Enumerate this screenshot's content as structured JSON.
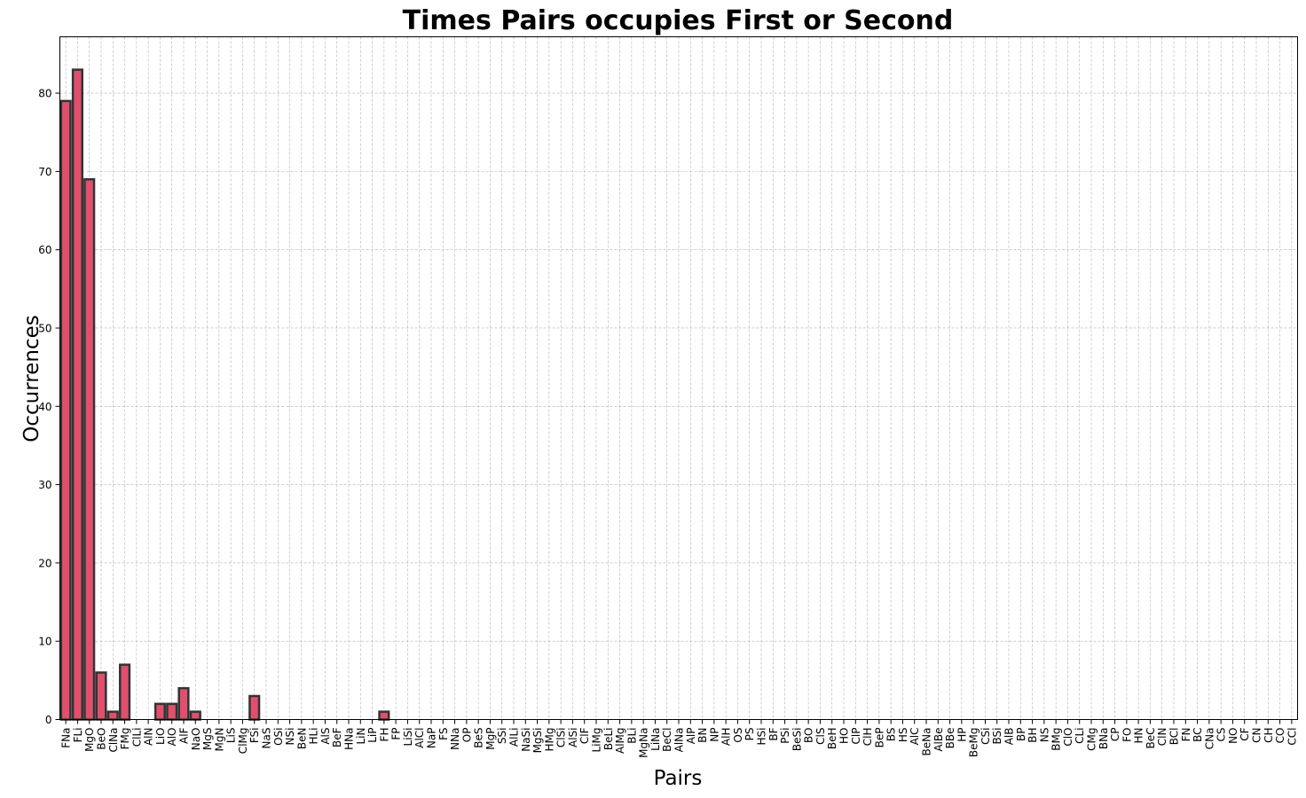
{
  "chart_data": {
    "type": "bar",
    "title": "Times Pairs occupies First or Second",
    "xlabel": "Pairs",
    "ylabel": "Occurrences",
    "ylim": [
      0,
      87.2
    ],
    "yticks": [
      0,
      10,
      20,
      30,
      40,
      50,
      60,
      70,
      80
    ],
    "grid": true,
    "colors": {
      "bar_fill": "#e0506c",
      "bar_edge": "#333333"
    },
    "categories": [
      "FNa",
      "FLi",
      "MgO",
      "BeO",
      "ClNa",
      "FMg",
      "ClLi",
      "AlN",
      "LiO",
      "AlO",
      "AlF",
      "NaO",
      "MgS",
      "MgN",
      "LiS",
      "ClMg",
      "FSi",
      "NaS",
      "OSi",
      "NSi",
      "BeN",
      "HLi",
      "AlS",
      "BeF",
      "HNa",
      "LiN",
      "LiP",
      "FH",
      "FP",
      "LiSi",
      "AlCl",
      "NaP",
      "FS",
      "NNa",
      "OP",
      "BeS",
      "MgP",
      "SSi",
      "AlLi",
      "NaSi",
      "MgSi",
      "HMg",
      "ClSi",
      "AlSi",
      "ClF",
      "LiMg",
      "BeLi",
      "AlMg",
      "BLi",
      "MgNa",
      "LiNa",
      "BeCl",
      "AlNa",
      "AlP",
      "BN",
      "NP",
      "AlH",
      "OS",
      "PS",
      "HSi",
      "BF",
      "PSi",
      "BeSi",
      "BO",
      "ClS",
      "BeH",
      "HO",
      "ClP",
      "ClH",
      "BeP",
      "BS",
      "HS",
      "AlC",
      "BeNa",
      "AlBe",
      "BBe",
      "HP",
      "BeMg",
      "CSi",
      "BSi",
      "AlB",
      "BP",
      "BH",
      "NS",
      "BMg",
      "ClO",
      "CLi",
      "CMg",
      "BNa",
      "CP",
      "FO",
      "HN",
      "BeC",
      "ClN",
      "BCl",
      "FN",
      "BC",
      "CNa",
      "CS",
      "NO",
      "CF",
      "CN",
      "CH",
      "CO",
      "CCl"
    ],
    "values": [
      79,
      83,
      69,
      6,
      1,
      7,
      0,
      0,
      2,
      2,
      4,
      1,
      0,
      0,
      0,
      0,
      3,
      0,
      0,
      0,
      0,
      0,
      0,
      0,
      0,
      0,
      0,
      1,
      0,
      0,
      0,
      0,
      0,
      0,
      0,
      0,
      0,
      0,
      0,
      0,
      0,
      0,
      0,
      0,
      0,
      0,
      0,
      0,
      0,
      0,
      0,
      0,
      0,
      0,
      0,
      0,
      0,
      0,
      0,
      0,
      0,
      0,
      0,
      0,
      0,
      0,
      0,
      0,
      0,
      0,
      0,
      0,
      0,
      0,
      0,
      0,
      0,
      0,
      0,
      0,
      0,
      0,
      0,
      0,
      0,
      0,
      0,
      0,
      0,
      0,
      0,
      0,
      0,
      0,
      0,
      0,
      0,
      0,
      0,
      0,
      0,
      0,
      0,
      0,
      0
    ]
  }
}
